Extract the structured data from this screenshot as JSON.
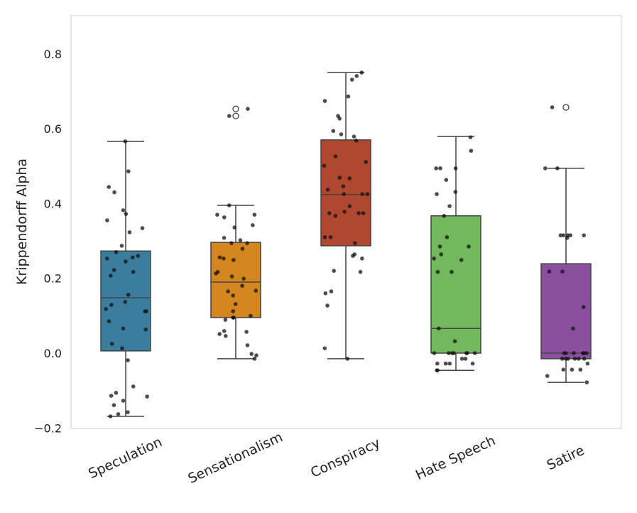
{
  "chart_data": {
    "type": "box",
    "title": "",
    "xlabel": "",
    "ylabel": "Krippendorff Alpha",
    "ylim": [
      -0.2,
      0.9
    ],
    "yticks": [
      -0.2,
      0.0,
      0.2,
      0.4,
      0.6,
      0.8
    ],
    "ytick_labels": [
      "−0.2",
      "0.0",
      "0.2",
      "0.4",
      "0.6",
      "0.8"
    ],
    "grid": false,
    "categories": [
      "Speculation",
      "Sensationalism",
      "Conspiracy",
      "Hate Speech",
      "Satire"
    ],
    "colors": [
      "#3b7d9c",
      "#d4861f",
      "#b0482f",
      "#74b85e",
      "#8a4f9e"
    ],
    "boxes": [
      {
        "whisker_low": -0.169,
        "q1": 0.006,
        "median": 0.148,
        "q3": 0.273,
        "whisker_high": 0.566,
        "outliers": []
      },
      {
        "whisker_low": -0.015,
        "q1": 0.095,
        "median": 0.19,
        "q3": 0.296,
        "whisker_high": 0.395,
        "outliers": [
          0.653,
          0.634
        ]
      },
      {
        "whisker_low": -0.015,
        "q1": 0.287,
        "median": 0.424,
        "q3": 0.57,
        "whisker_high": 0.75,
        "outliers": []
      },
      {
        "whisker_low": -0.046,
        "q1": 0.0,
        "median": 0.066,
        "q3": 0.367,
        "whisker_high": 0.579,
        "outliers": []
      },
      {
        "whisker_low": -0.078,
        "q1": -0.015,
        "median": 0.0,
        "q3": 0.239,
        "whisker_high": 0.494,
        "outliers": [
          0.657
        ]
      }
    ],
    "points": [
      [
        0.566,
        0.486,
        0.444,
        0.43,
        0.382,
        0.372,
        0.355,
        0.334,
        0.323,
        0.287,
        0.27,
        0.26,
        0.256,
        0.253,
        0.245,
        0.222,
        0.217,
        0.207,
        0.156,
        0.137,
        0.129,
        0.118,
        0.112,
        0.112,
        0.085,
        0.066,
        0.063,
        0.025,
        0.013,
        -0.019,
        -0.089,
        -0.106,
        -0.114,
        -0.116,
        -0.127,
        -0.139,
        -0.158,
        -0.163,
        -0.169
      ],
      [
        0.653,
        0.634,
        0.395,
        0.37,
        0.37,
        0.363,
        0.342,
        0.336,
        0.308,
        0.302,
        0.294,
        0.294,
        0.279,
        0.256,
        0.253,
        0.249,
        0.217,
        0.213,
        0.205,
        0.199,
        0.18,
        0.167,
        0.165,
        0.154,
        0.131,
        0.112,
        0.1,
        0.095,
        0.095,
        0.089,
        0.059,
        0.057,
        0.051,
        0.046,
        0.021,
        -0.002,
        -0.006,
        -0.015
      ],
      [
        0.75,
        0.741,
        0.731,
        0.686,
        0.674,
        0.634,
        0.627,
        0.594,
        0.585,
        0.579,
        0.568,
        0.526,
        0.511,
        0.501,
        0.469,
        0.467,
        0.446,
        0.437,
        0.425,
        0.425,
        0.425,
        0.393,
        0.378,
        0.374,
        0.374,
        0.374,
        0.367,
        0.31,
        0.31,
        0.294,
        0.264,
        0.26,
        0.253,
        0.22,
        0.217,
        0.165,
        0.16,
        0.127,
        0.013,
        -0.015
      ],
      [
        0.577,
        0.541,
        0.494,
        0.494,
        0.494,
        0.463,
        0.431,
        0.425,
        0.393,
        0.367,
        0.31,
        0.285,
        0.285,
        0.264,
        0.253,
        0.249,
        0.217,
        0.217,
        0.066,
        0.032,
        0,
        0,
        0,
        0,
        0,
        0,
        0,
        -0.015,
        -0.015,
        -0.028,
        -0.028,
        -0.028,
        -0.028,
        -0.046,
        -0.046
      ],
      [
        0.657,
        0.494,
        0.494,
        0.315,
        0.315,
        0.315,
        0.315,
        0.315,
        0.308,
        0.218,
        0.218,
        0.123,
        0.066,
        0,
        0,
        0,
        0,
        0,
        0,
        -0.015,
        -0.015,
        -0.015,
        -0.015,
        -0.015,
        -0.015,
        -0.028,
        -0.044,
        -0.044,
        -0.044,
        -0.061,
        -0.078
      ]
    ]
  }
}
